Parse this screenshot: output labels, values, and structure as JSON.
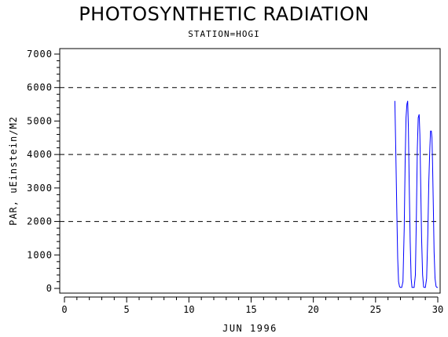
{
  "chart_data": {
    "type": "line",
    "title": "PHOTOSYNTHETIC RADIATION",
    "subtitle": "STATION=HOGI",
    "xlabel": "JUN 1996",
    "ylabel": "PAR, uEinstein/M2",
    "xlim": [
      0,
      30
    ],
    "ylim": [
      0,
      7000
    ],
    "x_ticks": [
      0,
      5,
      10,
      15,
      20,
      25,
      30
    ],
    "y_ticks": [
      0,
      1000,
      2000,
      3000,
      4000,
      5000,
      6000,
      7000
    ],
    "reference_lines_y": [
      2000,
      4000,
      6000
    ],
    "grid": false,
    "series": [
      {
        "color": "#0000ff",
        "x": [
          26.55,
          26.62,
          26.7,
          26.78,
          26.85,
          26.93,
          27.0,
          27.1,
          27.2,
          27.3,
          27.38,
          27.45,
          27.52,
          27.58,
          27.64,
          27.7,
          27.78,
          27.86,
          27.93,
          28.0,
          28.1,
          28.2,
          28.28,
          28.36,
          28.43,
          28.5,
          28.56,
          28.62,
          28.7,
          28.78,
          28.86,
          28.93,
          29.0,
          29.1,
          29.2,
          29.28,
          29.36,
          29.42,
          29.48,
          29.53,
          29.58,
          29.64,
          29.7,
          29.78,
          29.86,
          29.93,
          30.0
        ],
        "y": [
          5600,
          4200,
          2400,
          900,
          200,
          50,
          30,
          30,
          200,
          1800,
          3800,
          5100,
          5500,
          5600,
          4800,
          3200,
          1400,
          300,
          30,
          30,
          30,
          400,
          2200,
          4200,
          5100,
          5200,
          4600,
          3200,
          1500,
          400,
          40,
          30,
          30,
          300,
          1600,
          3200,
          4200,
          4700,
          4700,
          4500,
          3800,
          2500,
          1100,
          300,
          60,
          30,
          30
        ]
      }
    ]
  }
}
